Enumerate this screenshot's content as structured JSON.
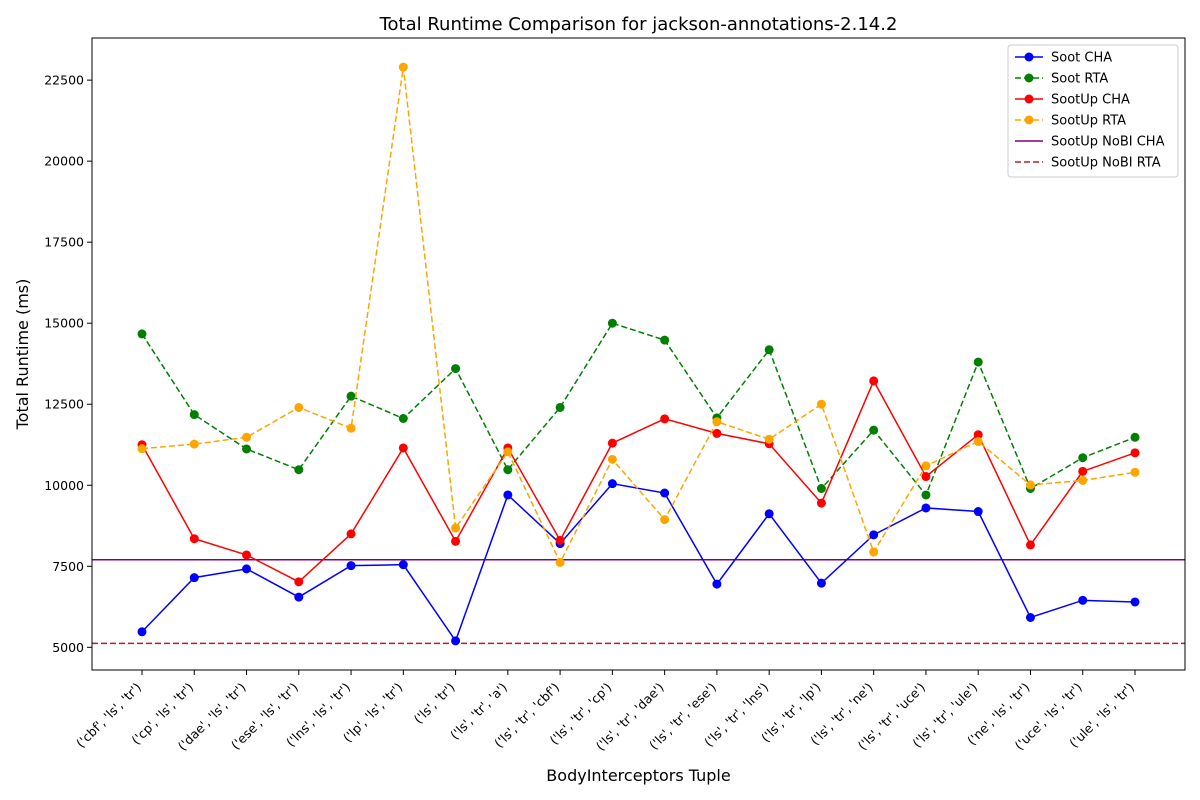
{
  "chart_data": {
    "type": "line",
    "title": "Total Runtime Comparison for jackson-annotations-2.14.2",
    "xlabel": "BodyInterceptors Tuple",
    "ylabel": "Total Runtime (ms)",
    "ylim": [
      4300,
      23800
    ],
    "yticks": [
      5000,
      7500,
      10000,
      12500,
      15000,
      17500,
      20000,
      22500
    ],
    "grid": false,
    "legend_position": "top-right",
    "categories": [
      "('cbf', 'ls', 'tr')",
      "('cp', 'ls', 'tr')",
      "('dae', 'ls', 'tr')",
      "('ese', 'ls', 'tr')",
      "('lns', 'ls', 'tr')",
      "('lp', 'ls', 'tr')",
      "('ls', 'tr')",
      "('ls', 'tr', 'a')",
      "('ls', 'tr', 'cbf')",
      "('ls', 'tr', 'cp')",
      "('ls', 'tr', 'dae')",
      "('ls', 'tr', 'ese')",
      "('ls', 'tr', 'lns')",
      "('ls', 'tr', 'lp')",
      "('ls', 'tr', 'ne')",
      "('ls', 'tr', 'uce')",
      "('ls', 'tr', 'ule')",
      "('ne', 'ls', 'tr')",
      "('uce', 'ls', 'tr')",
      "('ule', 'ls', 'tr')"
    ],
    "series": [
      {
        "name": "Soot CHA",
        "color": "#0000ff",
        "dashed": false,
        "markers": true,
        "values": [
          5480,
          7150,
          7420,
          6550,
          7520,
          7550,
          5200,
          9700,
          8200,
          10050,
          9760,
          6950,
          9120,
          6980,
          8470,
          9300,
          9190,
          5920,
          6450,
          6400
        ]
      },
      {
        "name": "Soot RTA",
        "color": "#008000",
        "dashed": true,
        "markers": true,
        "values": [
          14670,
          12180,
          11120,
          10480,
          12750,
          12060,
          13600,
          10480,
          12400,
          15000,
          14480,
          12080,
          14180,
          9900,
          11700,
          9700,
          13800,
          9900,
          10850,
          11480
        ]
      },
      {
        "name": "SootUp CHA",
        "color": "#ff0000",
        "dashed": false,
        "markers": true,
        "values": [
          11250,
          8350,
          7850,
          7020,
          8500,
          11150,
          8270,
          11150,
          8300,
          11300,
          12050,
          11600,
          11280,
          9450,
          13220,
          10270,
          11560,
          8160,
          10430,
          11000
        ]
      },
      {
        "name": "SootUp RTA",
        "color": "#ffa500",
        "dashed": true,
        "markers": true,
        "values": [
          11130,
          11270,
          11480,
          12400,
          11760,
          22900,
          8680,
          11030,
          7620,
          10800,
          8940,
          11960,
          11420,
          12500,
          7940,
          10600,
          11350,
          10010,
          10150,
          10400
        ]
      },
      {
        "name": "SootUp NoBI CHA",
        "color": "#800080",
        "dashed": false,
        "markers": false,
        "hline": 7700
      },
      {
        "name": "SootUp NoBI RTA",
        "color": "#b22222",
        "dashed": true,
        "markers": false,
        "hline": 5120
      }
    ]
  }
}
